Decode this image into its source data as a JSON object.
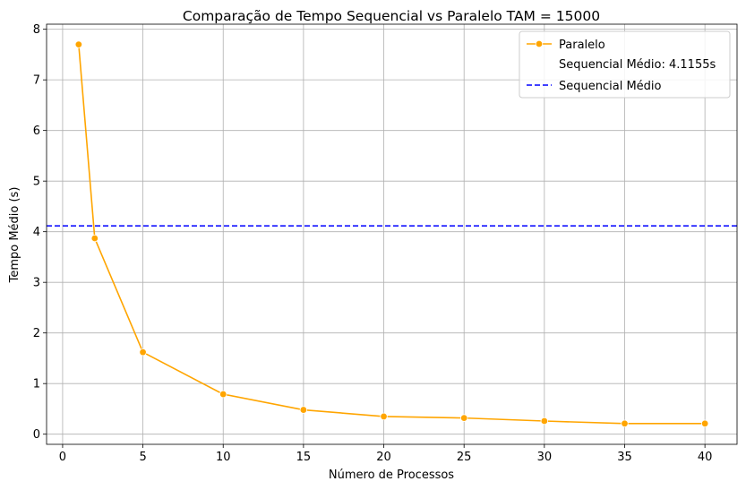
{
  "chart_data": {
    "type": "line",
    "title": "Comparação de Tempo Sequencial vs Paralelo TAM = 15000",
    "xlabel": "Número de Processos",
    "ylabel": "Tempo Médio (s)",
    "xlim": [
      -1,
      42
    ],
    "ylim": [
      -0.2,
      8.1
    ],
    "xticks": [
      0,
      5,
      10,
      15,
      20,
      25,
      30,
      35,
      40
    ],
    "yticks": [
      0,
      1,
      2,
      3,
      4,
      5,
      6,
      7,
      8
    ],
    "grid": true,
    "legend_position": "top-right",
    "series": [
      {
        "name": "Paralelo",
        "color": "#FFA500",
        "marker": "circle",
        "x": [
          1,
          2,
          5,
          10,
          15,
          20,
          25,
          30,
          35,
          40
        ],
        "y": [
          7.7,
          3.87,
          1.62,
          0.79,
          0.48,
          0.35,
          0.32,
          0.26,
          0.21,
          0.21
        ]
      }
    ],
    "legend": {
      "entries": [
        {
          "label": "Paralelo",
          "style": "line-marker",
          "color": "#FFA500"
        },
        {
          "label": "Sequencial Médio: 4.1155s",
          "style": "none"
        },
        {
          "label": "Sequencial Médio",
          "style": "dashed",
          "color": "#0000FF"
        }
      ]
    },
    "hline": {
      "value": 4.1155,
      "color": "#0000FF",
      "style": "dashed"
    }
  }
}
